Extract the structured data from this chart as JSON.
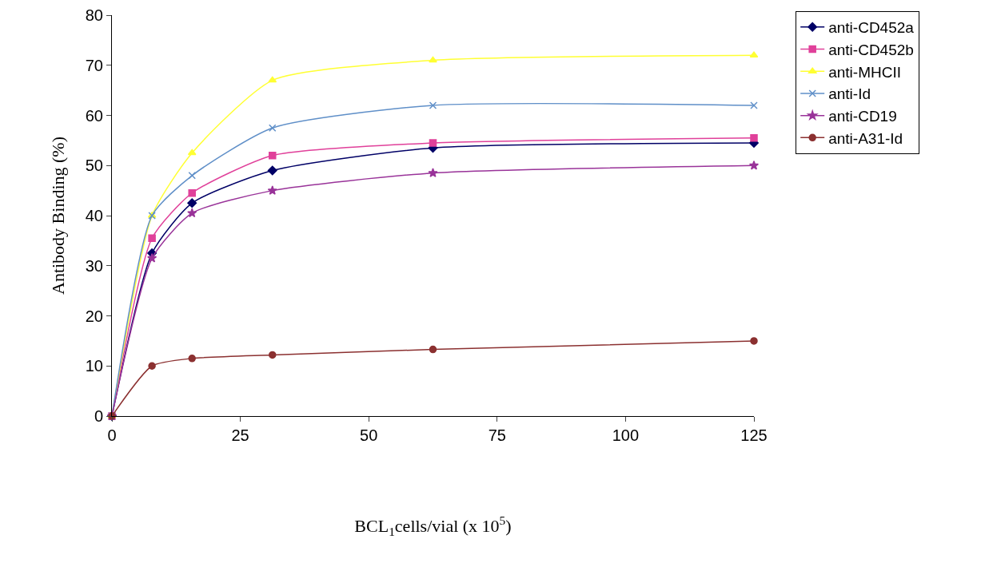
{
  "chart_data": {
    "type": "line",
    "xlabel": "BCL$_{1}$cells/vial (x 10$^{5}$)",
    "ylabel": "Antibody Binding (%)",
    "x": [
      0,
      7.8,
      15.6,
      31.25,
      62.5,
      125
    ],
    "xlim": [
      0,
      125
    ],
    "xticks": [
      0,
      25,
      50,
      75,
      100,
      125
    ],
    "ylim": [
      0,
      80
    ],
    "yticks": [
      0,
      10,
      20,
      30,
      40,
      50,
      60,
      70,
      80
    ],
    "grid": false,
    "legend": "top right",
    "series": [
      {
        "name": "anti-CD452a",
        "color": "#000066",
        "marker": "diamond",
        "values": [
          0,
          32.5,
          42.5,
          49,
          53.5,
          54.5
        ]
      },
      {
        "name": "anti-CD452b",
        "color": "#e0409a",
        "marker": "square",
        "values": [
          0,
          35.5,
          44.5,
          52,
          54.5,
          55.5
        ]
      },
      {
        "name": "anti-MHCII",
        "color": "#ffff33",
        "marker": "triangle",
        "values": [
          0,
          40,
          52.5,
          67,
          71,
          72
        ]
      },
      {
        "name": "anti-Id",
        "color": "#5f8fc8",
        "marker": "cross",
        "values": [
          0,
          40,
          48,
          57.5,
          62,
          62
        ]
      },
      {
        "name": "anti-CD19",
        "color": "#993399",
        "marker": "star",
        "values": [
          0,
          31.5,
          40.5,
          45,
          48.5,
          50
        ]
      },
      {
        "name": "anti-A31-Id",
        "color": "#8b3030",
        "marker": "circle",
        "values": [
          0,
          10,
          11.5,
          12.2,
          13.3,
          15
        ]
      }
    ]
  }
}
